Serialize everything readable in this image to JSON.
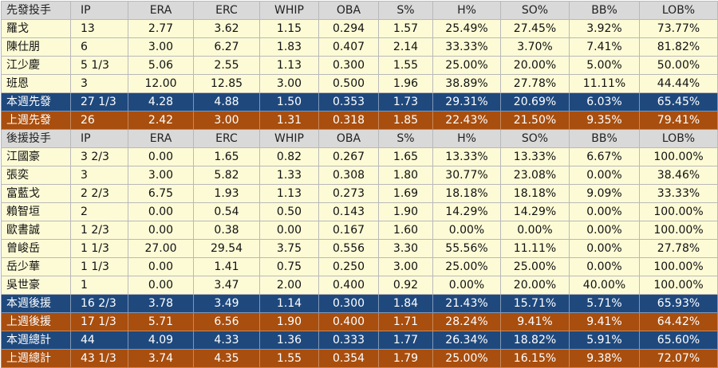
{
  "starters": {
    "header": [
      "先發投手",
      "IP",
      "ERA",
      "ERC",
      "WHIP",
      "OBA",
      "S%",
      "H%",
      "SO%",
      "BB%",
      "LOB%"
    ],
    "rows": [
      [
        "羅戈",
        "13",
        "2.77",
        "3.62",
        "1.15",
        "0.294",
        "1.57",
        "25.49%",
        "27.45%",
        "3.92%",
        "73.77%"
      ],
      [
        "陳仕朋",
        "6",
        "3.00",
        "6.27",
        "1.83",
        "0.407",
        "2.14",
        "33.33%",
        "3.70%",
        "7.41%",
        "81.82%"
      ],
      [
        "江少慶",
        "5 1/3",
        "5.06",
        "2.55",
        "1.13",
        "0.300",
        "1.55",
        "25.00%",
        "20.00%",
        "5.00%",
        "50.00%"
      ],
      [
        "班恩",
        "3",
        "12.00",
        "12.85",
        "3.00",
        "0.500",
        "1.96",
        "38.89%",
        "27.78%",
        "11.11%",
        "44.44%"
      ]
    ],
    "this_week": [
      "本週先發",
      "27 1/3",
      "4.28",
      "4.88",
      "1.50",
      "0.353",
      "1.73",
      "29.31%",
      "20.69%",
      "6.03%",
      "65.45%"
    ],
    "last_week": [
      "上週先發",
      "26",
      "2.42",
      "3.00",
      "1.31",
      "0.318",
      "1.85",
      "22.43%",
      "21.50%",
      "9.35%",
      "79.41%"
    ]
  },
  "relievers": {
    "header": [
      "後援投手",
      "IP",
      "ERA",
      "ERC",
      "WHIP",
      "OBA",
      "S%",
      "H%",
      "SO%",
      "BB%",
      "LOB%"
    ],
    "rows": [
      [
        "江國豪",
        "3 2/3",
        "0.00",
        "1.65",
        "0.82",
        "0.267",
        "1.65",
        "13.33%",
        "13.33%",
        "6.67%",
        "100.00%"
      ],
      [
        "張奕",
        "3",
        "3.00",
        "5.82",
        "1.33",
        "0.308",
        "1.80",
        "30.77%",
        "23.08%",
        "0.00%",
        "38.46%"
      ],
      [
        "富藍戈",
        "2 2/3",
        "6.75",
        "1.93",
        "1.13",
        "0.273",
        "1.69",
        "18.18%",
        "18.18%",
        "9.09%",
        "33.33%"
      ],
      [
        "賴智垣",
        "2",
        "0.00",
        "0.54",
        "0.50",
        "0.143",
        "1.90",
        "14.29%",
        "14.29%",
        "0.00%",
        "100.00%"
      ],
      [
        "歐書誠",
        "1 2/3",
        "0.00",
        "0.38",
        "0.00",
        "0.167",
        "1.60",
        "0.00%",
        "0.00%",
        "0.00%",
        "100.00%"
      ],
      [
        "曾峻岳",
        "1 1/3",
        "27.00",
        "29.54",
        "3.75",
        "0.556",
        "3.30",
        "55.56%",
        "11.11%",
        "0.00%",
        "27.78%"
      ],
      [
        "岳少華",
        "1 1/3",
        "0.00",
        "1.41",
        "0.75",
        "0.250",
        "3.00",
        "25.00%",
        "25.00%",
        "0.00%",
        "100.00%"
      ],
      [
        "吳世豪",
        "1",
        "0.00",
        "3.47",
        "2.00",
        "0.400",
        "0.92",
        "0.00%",
        "20.00%",
        "40.00%",
        "100.00%"
      ]
    ],
    "this_week": [
      "本週後援",
      "16 2/3",
      "3.78",
      "3.49",
      "1.14",
      "0.300",
      "1.84",
      "21.43%",
      "15.71%",
      "5.71%",
      "65.93%"
    ],
    "last_week": [
      "上週後援",
      "17 1/3",
      "5.71",
      "6.56",
      "1.90",
      "0.400",
      "1.71",
      "28.24%",
      "9.41%",
      "9.41%",
      "64.42%"
    ]
  },
  "totals": {
    "this_week": [
      "本週總計",
      "44",
      "4.09",
      "4.33",
      "1.36",
      "0.333",
      "1.77",
      "26.34%",
      "18.82%",
      "5.91%",
      "65.60%"
    ],
    "last_week": [
      "上週總計",
      "43 1/3",
      "3.74",
      "4.35",
      "1.55",
      "0.354",
      "1.79",
      "25.00%",
      "16.15%",
      "9.38%",
      "72.07%"
    ]
  },
  "colors": {
    "header_bg": "#d9d9d9",
    "row_bg": "#fdfbd6",
    "this_week_bg": "#1f497d",
    "last_week_bg": "#a84e0e",
    "grid": "#b9b9b9"
  }
}
